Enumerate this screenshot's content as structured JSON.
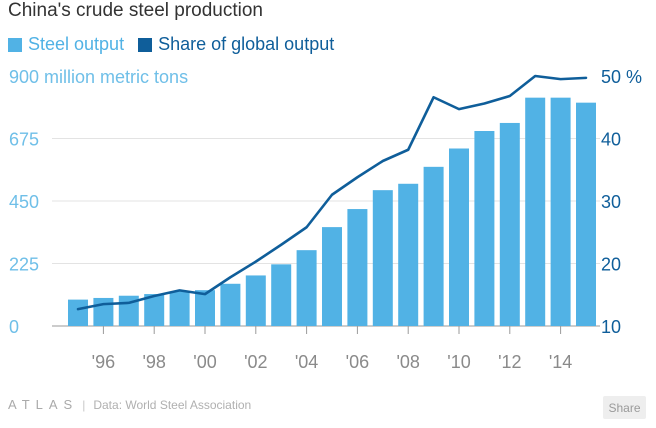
{
  "chart_data": {
    "type": "bar",
    "title": "China's crude steel production",
    "x": [
      1995,
      1996,
      1997,
      1998,
      1999,
      2000,
      2001,
      2002,
      2003,
      2004,
      2005,
      2006,
      2007,
      2008,
      2009,
      2010,
      2011,
      2012,
      2013,
      2014,
      2015
    ],
    "xticks": [
      "'96",
      "'98",
      "'00",
      "'02",
      "'04",
      "'06",
      "'08",
      "'10",
      "'12",
      "'14"
    ],
    "xtick_years": [
      1996,
      1998,
      2000,
      2002,
      2004,
      2006,
      2008,
      2010,
      2012,
      2014
    ],
    "series": [
      {
        "name": "Steel output",
        "kind": "bar",
        "axis": "left",
        "color": "#51b2e5",
        "values": [
          95,
          101,
          109,
          115,
          124,
          129,
          152,
          182,
          222,
          273,
          356,
          421,
          489,
          512,
          573,
          639,
          702,
          731,
          822,
          822,
          804
        ]
      },
      {
        "name": "Share of global output",
        "kind": "line",
        "axis": "right",
        "color": "#0f5e9a",
        "values": [
          12.7,
          13.5,
          13.7,
          14.8,
          15.7,
          15.1,
          17.8,
          20.3,
          23.0,
          25.8,
          31.0,
          33.8,
          36.4,
          38.2,
          46.6,
          44.7,
          45.6,
          46.8,
          50.0,
          49.5,
          49.7
        ]
      }
    ],
    "left_axis": {
      "ticks": [
        0,
        225,
        450,
        675,
        900
      ],
      "top_label": "900 million metric tons",
      "ylim": [
        0,
        900
      ]
    },
    "right_axis": {
      "ticks": [
        10,
        20,
        30,
        40,
        50
      ],
      "top_label": "50 %",
      "ylim": [
        10,
        50
      ]
    },
    "grid": true
  },
  "legend": {
    "bars_label": "Steel output",
    "line_label": "Share of global output"
  },
  "footer": {
    "brand": "ATLAS",
    "source": "Data: World Steel Association",
    "share": "Share"
  }
}
